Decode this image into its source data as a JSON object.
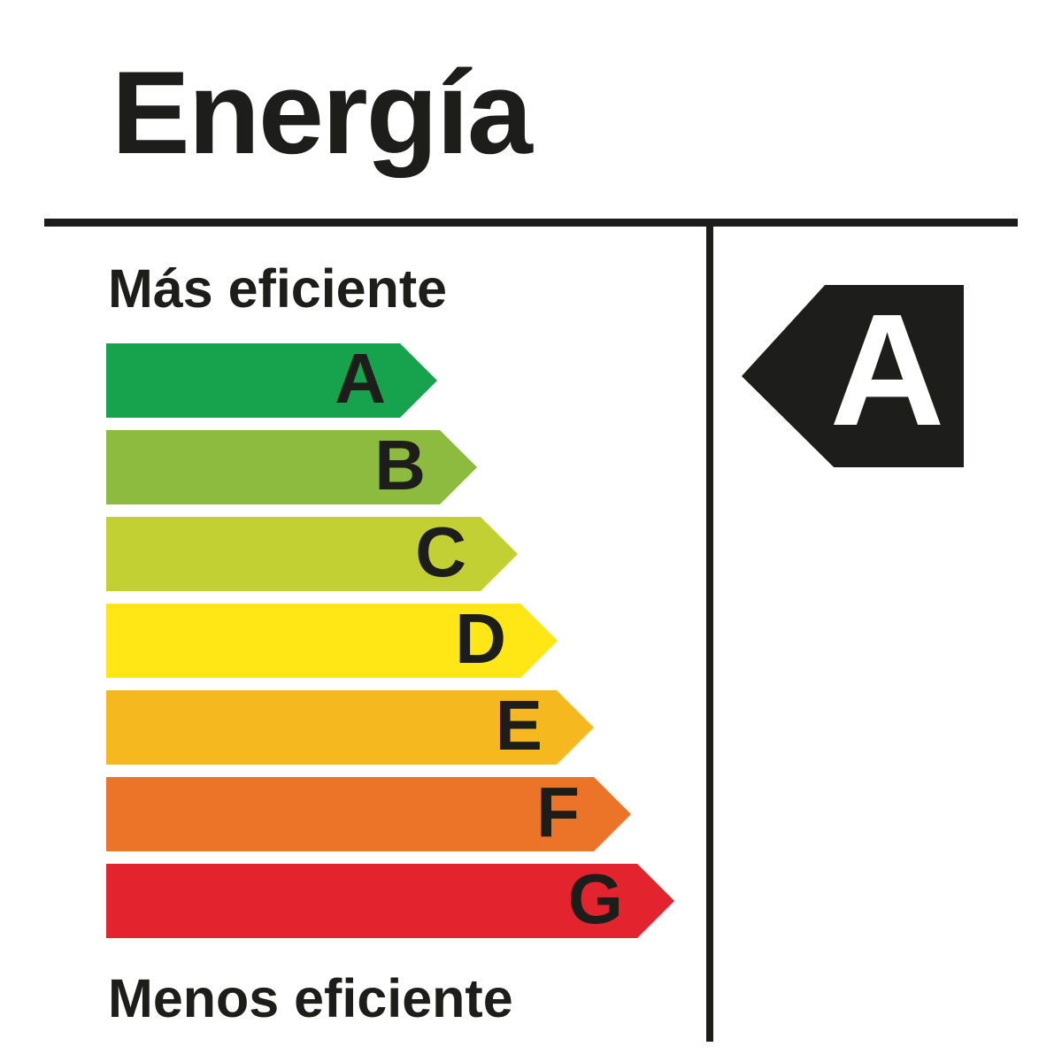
{
  "page": {
    "background": "#ffffff",
    "ink": "#1d1d1b"
  },
  "header": {
    "title": "Energía"
  },
  "scale": {
    "top_label": "Más eficiente",
    "bottom_label": "Menos eficiente"
  },
  "rating_badge": {
    "letter": "A",
    "background": "#1d1d1b",
    "text_color": "#ffffff"
  },
  "chart_data": {
    "type": "bar",
    "title": "Energía",
    "orientation": "horizontal",
    "categories": [
      "A",
      "B",
      "C",
      "D",
      "E",
      "F",
      "G"
    ],
    "series": [
      {
        "name": "bar_length_px",
        "values": [
          374,
          419,
          465,
          510,
          551,
          593,
          642
        ]
      }
    ],
    "colors": [
      "#17a24e",
      "#8dbb40",
      "#c2d034",
      "#fee714",
      "#f6b81f",
      "#eb7428",
      "#e3242f"
    ],
    "annotations": [
      "Más eficiente",
      "Menos eficiente"
    ],
    "selected_rating": "A",
    "legend": "off",
    "grid": "off"
  }
}
